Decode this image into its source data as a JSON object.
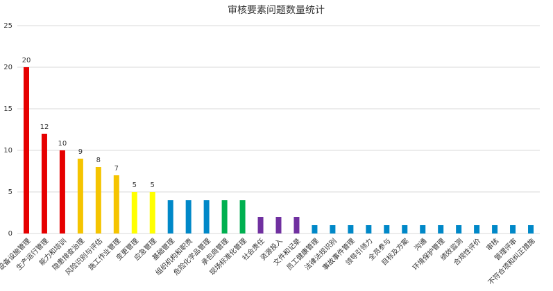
{
  "chart_data": {
    "type": "bar",
    "title": "审核要素问题数量统计",
    "categories": [
      "设备设施管理",
      "生产运行管理",
      "能力和培训",
      "隐患排查治理",
      "风险识别与评估",
      "施工作业管理",
      "变更管理",
      "应急管理",
      "基础管理",
      "组织机构和职责",
      "危险化学品管理",
      "承包商管理",
      "现场标准化管理",
      "社会责任",
      "资源投入",
      "文件和记录",
      "员工健康管理",
      "法律法规识别",
      "事故事件管理",
      "领导引领力",
      "全员参与",
      "目标及方案",
      "沟通",
      "环境保护管理",
      "绩效监测",
      "合规性评价",
      "审核",
      "管理评审",
      "不符合项和纠正措施"
    ],
    "values": [
      20,
      12,
      10,
      9,
      8,
      7,
      5,
      5,
      4,
      4,
      4,
      4,
      4,
      2,
      2,
      2,
      1,
      1,
      1,
      1,
      1,
      1,
      1,
      1,
      1,
      1,
      1,
      1,
      1
    ],
    "value_labels": [
      "20",
      "12",
      "10",
      "9",
      "8",
      "7",
      "5",
      "5",
      null,
      null,
      null,
      null,
      null,
      null,
      null,
      null,
      null,
      null,
      null,
      null,
      null,
      null,
      null,
      null,
      null,
      null,
      null,
      null,
      null
    ],
    "colors": [
      "#e60000",
      "#e60000",
      "#e60000",
      "#f5c400",
      "#f5c400",
      "#f5c400",
      "#ffff00",
      "#ffff00",
      "#0088c8",
      "#0088c8",
      "#0088c8",
      "#00b050",
      "#00b050",
      "#7030a0",
      "#7030a0",
      "#7030a0",
      "#0088c8",
      "#0088c8",
      "#0088c8",
      "#0088c8",
      "#0088c8",
      "#0088c8",
      "#0088c8",
      "#0088c8",
      "#0088c8",
      "#0088c8",
      "#0088c8",
      "#0088c8",
      "#0088c8"
    ],
    "ylim": [
      0,
      25
    ],
    "yticks": [
      0,
      5,
      10,
      15,
      20,
      25
    ],
    "grid": true
  }
}
